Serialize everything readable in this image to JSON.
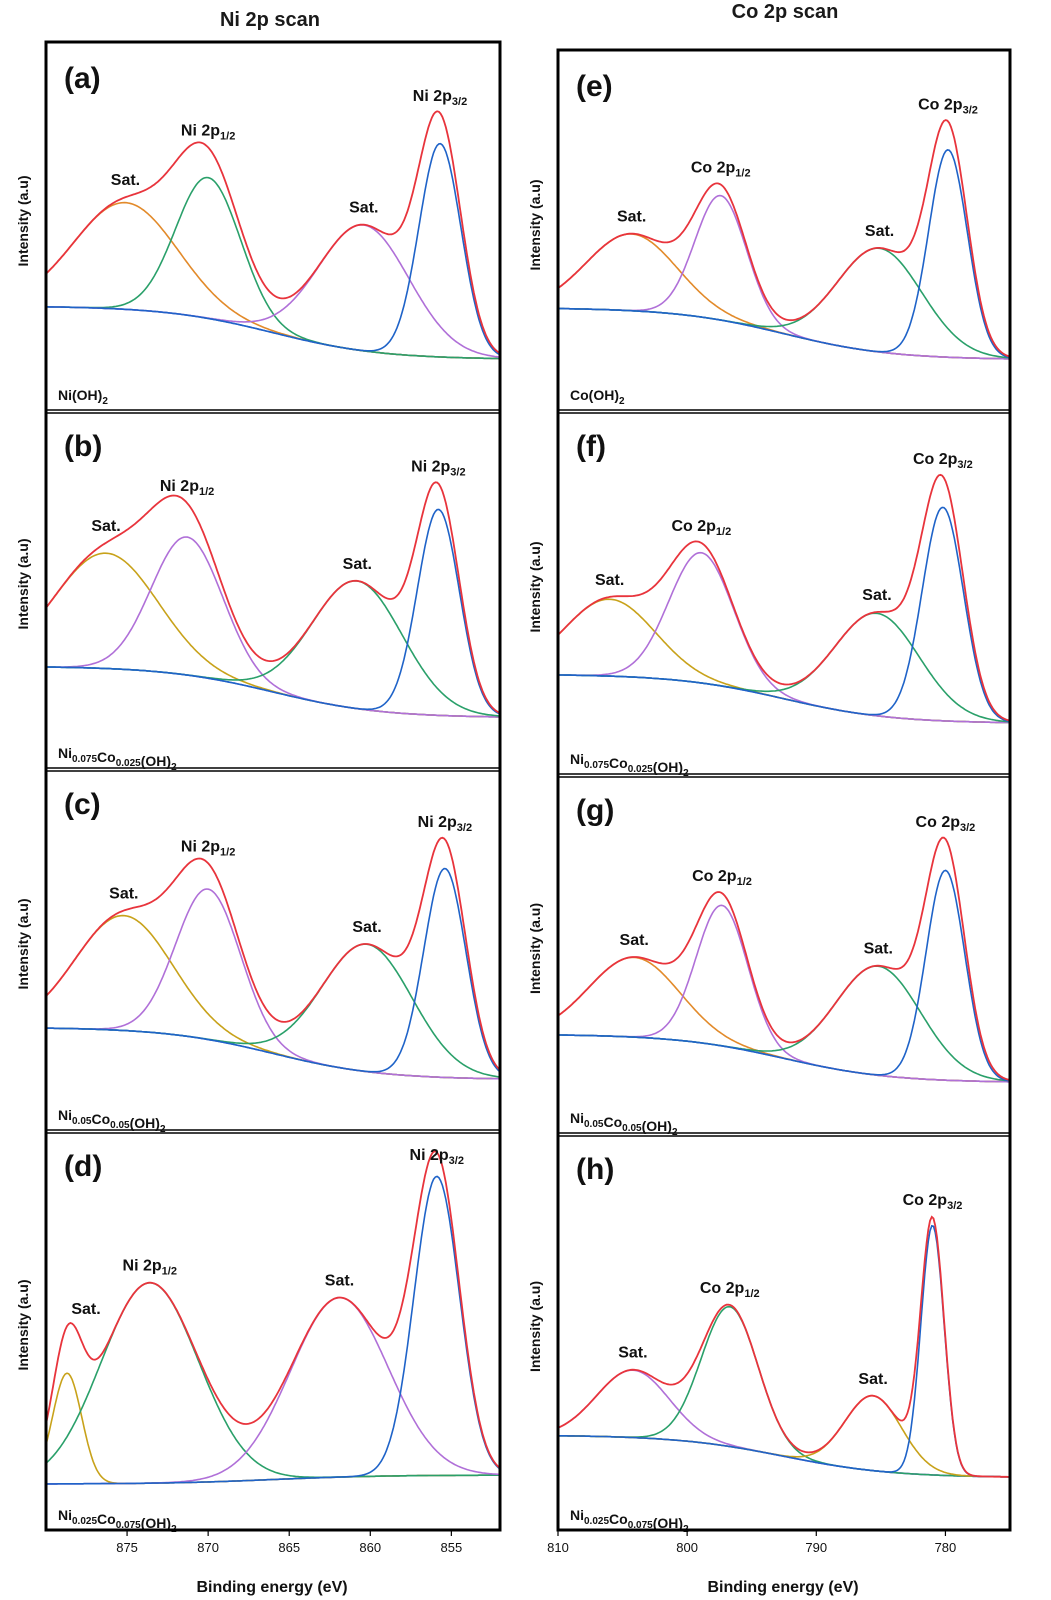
{
  "figure": {
    "left_title": "Ni 2p scan",
    "right_title": "Co 2p scan",
    "x_axis_label": "Binding energy (eV)",
    "y_axis_label": "Intensity (a.u)"
  },
  "colors": {
    "envelope": "#e8343c",
    "background": "#4a63d6",
    "blue": "#1f63c8",
    "green": "#2aa06a",
    "purple": "#b070d8",
    "gold": "#c8a21a",
    "orange": "#e28a2a"
  },
  "chart_data": [
    {
      "panel": "a",
      "type": "line",
      "sample": "Ni(OH)2",
      "sample_base": "Ni(OH)",
      "sample_sub": "2",
      "xlim": [
        880,
        852
      ],
      "x_reversed": true,
      "background": [
        0.3,
        0.05
      ],
      "peaks": [
        {
          "center": 875.1,
          "height": 0.5,
          "width": 3.2,
          "color": "orange"
        },
        {
          "center": 870.0,
          "height": 0.66,
          "width": 2.0,
          "color": "green"
        },
        {
          "center": 860.4,
          "height": 0.59,
          "width": 2.8,
          "color": "purple"
        },
        {
          "center": 855.7,
          "height": 1.0,
          "width": 1.3,
          "color": "blue"
        }
      ],
      "labels": [
        {
          "base": "Sat.",
          "sub": "",
          "x": 875.1
        },
        {
          "base": "Ni 2p",
          "sub": "1/2",
          "x": 870.0
        },
        {
          "base": "Sat.",
          "sub": "",
          "x": 860.4
        },
        {
          "base": "Ni 2p",
          "sub": "3/2",
          "x": 855.7
        }
      ]
    },
    {
      "panel": "b",
      "type": "line",
      "sample": "Ni0.075Co0.025(OH)2",
      "sample_parts": [
        [
          "Ni",
          ""
        ],
        [
          "",
          "0.075"
        ],
        [
          "Co",
          ""
        ],
        [
          "",
          "0.025"
        ],
        [
          "(OH)",
          ""
        ],
        [
          "",
          "2"
        ]
      ],
      "xlim": [
        880,
        852
      ],
      "x_reversed": true,
      "background": [
        0.3,
        0.05
      ],
      "peaks": [
        {
          "center": 876.3,
          "height": 0.56,
          "width": 3.2,
          "color": "gold"
        },
        {
          "center": 871.3,
          "height": 0.67,
          "width": 2.2,
          "color": "purple"
        },
        {
          "center": 860.8,
          "height": 0.62,
          "width": 2.8,
          "color": "green"
        },
        {
          "center": 855.8,
          "height": 1.0,
          "width": 1.3,
          "color": "blue"
        }
      ],
      "labels": [
        {
          "base": "Sat.",
          "sub": "",
          "x": 876.3
        },
        {
          "base": "Ni 2p",
          "sub": "1/2",
          "x": 871.3
        },
        {
          "base": "Sat.",
          "sub": "",
          "x": 860.8
        },
        {
          "base": "Ni 2p",
          "sub": "3/2",
          "x": 855.8
        }
      ]
    },
    {
      "panel": "c",
      "type": "line",
      "sample": "Ni0.05Co0.05(OH)2",
      "sample_parts": [
        [
          "Ni",
          ""
        ],
        [
          "",
          "0.05"
        ],
        [
          "Co",
          ""
        ],
        [
          "",
          "0.05"
        ],
        [
          "(OH)",
          ""
        ],
        [
          "",
          "2"
        ]
      ],
      "xlim": [
        880,
        852
      ],
      "x_reversed": true,
      "background": [
        0.3,
        0.05
      ],
      "peaks": [
        {
          "center": 875.2,
          "height": 0.55,
          "width": 3.0,
          "color": "gold"
        },
        {
          "center": 870.0,
          "height": 0.72,
          "width": 2.0,
          "color": "purple"
        },
        {
          "center": 860.2,
          "height": 0.61,
          "width": 2.8,
          "color": "green"
        },
        {
          "center": 855.4,
          "height": 1.0,
          "width": 1.3,
          "color": "blue"
        }
      ],
      "labels": [
        {
          "base": "Sat.",
          "sub": "",
          "x": 875.2
        },
        {
          "base": "Ni 2p",
          "sub": "1/2",
          "x": 870.0
        },
        {
          "base": "Sat.",
          "sub": "",
          "x": 860.2
        },
        {
          "base": "Ni 2p",
          "sub": "3/2",
          "x": 855.4
        }
      ]
    },
    {
      "panel": "d",
      "type": "line",
      "sample": "Ni0.025Co0.075(OH)2",
      "sample_parts": [
        [
          "Ni",
          ""
        ],
        [
          "",
          "0.025"
        ],
        [
          "Co",
          ""
        ],
        [
          "",
          "0.075"
        ],
        [
          "(OH)",
          ""
        ],
        [
          "",
          "2"
        ]
      ],
      "xlim": [
        880,
        852
      ],
      "x_reversed": true,
      "background": [
        0.02,
        0.05
      ],
      "peaks": [
        {
          "center": 878.7,
          "height": 0.37,
          "width": 0.9,
          "color": "gold"
        },
        {
          "center": 873.6,
          "height": 0.67,
          "width": 3.0,
          "color": "green"
        },
        {
          "center": 861.9,
          "height": 0.6,
          "width": 3.0,
          "color": "purple"
        },
        {
          "center": 855.9,
          "height": 1.0,
          "width": 1.4,
          "color": "blue"
        }
      ],
      "labels": [
        {
          "base": "Sat.",
          "sub": "",
          "x": 878.7
        },
        {
          "base": "Ni 2p",
          "sub": "1/2",
          "x": 873.6
        },
        {
          "base": "Sat.",
          "sub": "",
          "x": 861.9
        },
        {
          "base": "Ni 2p",
          "sub": "3/2",
          "x": 855.9
        }
      ],
      "x_ticks": [
        875,
        870,
        865,
        860,
        855
      ]
    },
    {
      "panel": "e",
      "type": "line",
      "sample": "Co(OH)2",
      "sample_base": "Co(OH)",
      "sub_end": "2",
      "xlim": [
        810,
        775
      ],
      "x_reversed": true,
      "background": [
        0.3,
        0.05
      ],
      "peaks": [
        {
          "center": 804.3,
          "height": 0.37,
          "width": 3.5,
          "color": "orange"
        },
        {
          "center": 797.4,
          "height": 0.6,
          "width": 2.0,
          "color": "purple"
        },
        {
          "center": 785.1,
          "height": 0.5,
          "width": 3.3,
          "color": "green"
        },
        {
          "center": 779.8,
          "height": 1.0,
          "width": 1.5,
          "color": "blue"
        }
      ],
      "labels": [
        {
          "base": "Sat.",
          "sub": "",
          "x": 804.3
        },
        {
          "base": "Co 2p",
          "sub": "1/2",
          "x": 797.4
        },
        {
          "base": "Sat.",
          "sub": "",
          "x": 785.1
        },
        {
          "base": "Co 2p",
          "sub": "3/2",
          "x": 779.8
        }
      ]
    },
    {
      "panel": "f",
      "type": "line",
      "sample": "Ni0.075Co0.025(OH)2",
      "sample_parts": [
        [
          "Ni",
          ""
        ],
        [
          "",
          "0.075"
        ],
        [
          "Co",
          ""
        ],
        [
          "",
          "0.025"
        ],
        [
          "(OH)",
          ""
        ],
        [
          "",
          "2"
        ]
      ],
      "xlim": [
        810,
        775
      ],
      "x_reversed": true,
      "background": [
        0.28,
        0.05
      ],
      "peaks": [
        {
          "center": 806.0,
          "height": 0.36,
          "width": 3.5,
          "color": "gold"
        },
        {
          "center": 798.9,
          "height": 0.61,
          "width": 2.5,
          "color": "purple"
        },
        {
          "center": 785.3,
          "height": 0.48,
          "width": 3.3,
          "color": "green"
        },
        {
          "center": 780.2,
          "height": 1.0,
          "width": 1.6,
          "color": "blue"
        }
      ],
      "labels": [
        {
          "base": "Sat.",
          "sub": "",
          "x": 806.0
        },
        {
          "base": "Co 2p",
          "sub": "1/2",
          "x": 798.9
        },
        {
          "base": "Sat.",
          "sub": "",
          "x": 785.3
        },
        {
          "base": "Co 2p",
          "sub": "3/2",
          "x": 780.2
        }
      ]
    },
    {
      "panel": "g",
      "type": "line",
      "sample": "Ni0.05Co0.05(OH)2",
      "sample_parts": [
        [
          "Ni",
          ""
        ],
        [
          "",
          "0.05"
        ],
        [
          "Co",
          ""
        ],
        [
          "",
          "0.05"
        ],
        [
          "(OH)",
          ""
        ],
        [
          "",
          "2"
        ]
      ],
      "xlim": [
        810,
        775
      ],
      "x_reversed": true,
      "background": [
        0.28,
        0.05
      ],
      "peaks": [
        {
          "center": 804.1,
          "height": 0.38,
          "width": 3.5,
          "color": "orange"
        },
        {
          "center": 797.3,
          "height": 0.67,
          "width": 2.0,
          "color": "purple"
        },
        {
          "center": 785.2,
          "height": 0.52,
          "width": 3.3,
          "color": "green"
        },
        {
          "center": 780.0,
          "height": 1.0,
          "width": 1.5,
          "color": "blue"
        }
      ],
      "labels": [
        {
          "base": "Sat.",
          "sub": "",
          "x": 804.1
        },
        {
          "base": "Co 2p",
          "sub": "1/2",
          "x": 797.3
        },
        {
          "base": "Sat.",
          "sub": "",
          "x": 785.2
        },
        {
          "base": "Co 2p",
          "sub": "3/2",
          "x": 780.0
        }
      ]
    },
    {
      "panel": "h",
      "type": "line",
      "sample": "Ni0.025Co0.075(OH)2",
      "sample_parts": [
        [
          "Ni",
          ""
        ],
        [
          "",
          "0.025"
        ],
        [
          "Co",
          ""
        ],
        [
          "",
          "0.075"
        ],
        [
          "(OH)",
          ""
        ],
        [
          "",
          "2"
        ]
      ],
      "xlim": [
        810,
        775
      ],
      "x_reversed": true,
      "background": [
        0.22,
        0.05
      ],
      "peaks": [
        {
          "center": 804.2,
          "height": 0.27,
          "width": 2.8,
          "color": "purple"
        },
        {
          "center": 796.7,
          "height": 0.56,
          "width": 2.2,
          "color": "green"
        },
        {
          "center": 785.6,
          "height": 0.3,
          "width": 2.2,
          "color": "gold"
        },
        {
          "center": 781.0,
          "height": 1.0,
          "width": 0.9,
          "color": "blue"
        }
      ],
      "labels": [
        {
          "base": "Sat.",
          "sub": "",
          "x": 804.2
        },
        {
          "base": "Co 2p",
          "sub": "1/2",
          "x": 796.7
        },
        {
          "base": "Sat.",
          "sub": "",
          "x": 785.6
        },
        {
          "base": "Co 2p",
          "sub": "3/2",
          "x": 781.0
        }
      ],
      "x_ticks": [
        810,
        800,
        790,
        780
      ]
    }
  ]
}
